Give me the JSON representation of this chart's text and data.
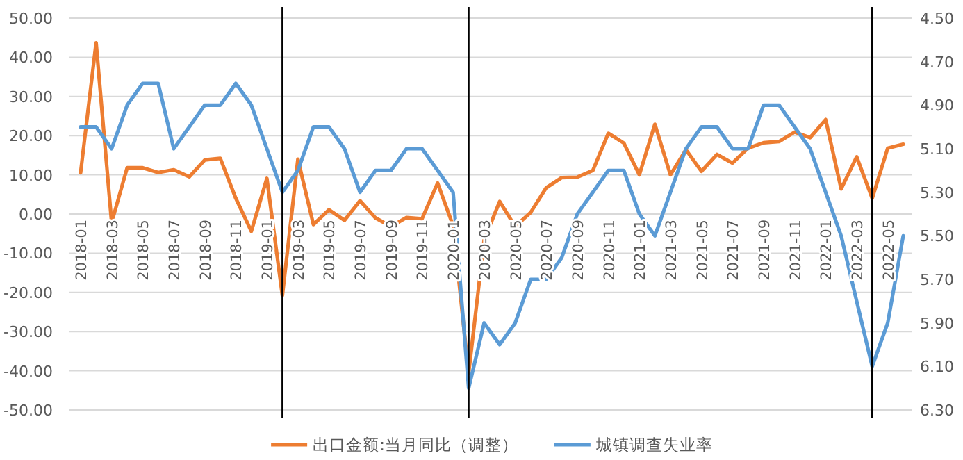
{
  "chart_data": {
    "type": "line",
    "legend": "bottom",
    "grid": "y",
    "x": [
      "2018-01",
      "2018-02",
      "2018-03",
      "2018-04",
      "2018-05",
      "2018-06",
      "2018-07",
      "2018-08",
      "2018-09",
      "2018-10",
      "2018-11",
      "2018-12",
      "2019-01",
      "2019-02",
      "2019-03",
      "2019-04",
      "2019-05",
      "2019-06",
      "2019-07",
      "2019-08",
      "2019-09",
      "2019-10",
      "2019-11",
      "2019-12",
      "2020-01",
      "2020-02",
      "2020-03",
      "2020-04",
      "2020-05",
      "2020-06",
      "2020-07",
      "2020-08",
      "2020-09",
      "2020-10",
      "2020-11",
      "2020-12",
      "2021-01",
      "2021-02",
      "2021-03",
      "2021-04",
      "2021-05",
      "2021-06",
      "2021-07",
      "2021-08",
      "2021-09",
      "2021-10",
      "2021-11",
      "2021-12",
      "2022-01",
      "2022-02",
      "2022-03",
      "2022-04",
      "2022-05",
      "2022-06"
    ],
    "xlim": [
      "2018-01",
      "2022-06"
    ],
    "xticks": [
      "2018-01",
      "2018-03",
      "2018-05",
      "2018-07",
      "2018-09",
      "2018-11",
      "2019-01",
      "2019-03",
      "2019-05",
      "2019-07",
      "2019-09",
      "2019-11",
      "2020-01",
      "2020-03",
      "2020-05",
      "2020-07",
      "2020-09",
      "2020-11",
      "2021-01",
      "2021-03",
      "2021-05",
      "2021-07",
      "2021-09",
      "2021-11",
      "2022-01",
      "2022-03",
      "2022-05"
    ],
    "ylim": [
      -50,
      50
    ],
    "yticks": [
      {
        "value": -50,
        "label": "-50.00"
      },
      {
        "value": -40,
        "label": "-40.00"
      },
      {
        "value": -30,
        "label": "-30.00"
      },
      {
        "value": -20,
        "label": "-20.00"
      },
      {
        "value": -10,
        "label": "-10.00"
      },
      {
        "value": 0,
        "label": "0.00"
      },
      {
        "value": 10,
        "label": "10.00"
      },
      {
        "value": 20,
        "label": "20.00"
      },
      {
        "value": 30,
        "label": "30.00"
      },
      {
        "value": 40,
        "label": "40.00"
      },
      {
        "value": 50,
        "label": "50.00"
      }
    ],
    "y2lim": [
      6.3,
      4.5
    ],
    "y2ticks": [
      {
        "value": 6.3,
        "label": "6.30"
      },
      {
        "value": 6.1,
        "label": "6.10"
      },
      {
        "value": 5.9,
        "label": "5.90"
      },
      {
        "value": 5.7,
        "label": "5.70"
      },
      {
        "value": 5.5,
        "label": "5.50"
      },
      {
        "value": 5.3,
        "label": "5.30"
      },
      {
        "value": 5.1,
        "label": "5.10"
      },
      {
        "value": 4.9,
        "label": "4.90"
      },
      {
        "value": 4.7,
        "label": "4.70"
      },
      {
        "value": 4.5,
        "label": "4.50"
      }
    ],
    "ref_lines": [
      {
        "axis": "x",
        "value": "2019-02",
        "color": "#000000"
      },
      {
        "axis": "x",
        "value": "2020-02",
        "color": "#000000"
      },
      {
        "axis": "x",
        "value": "2022-04",
        "color": "#000000"
      }
    ],
    "series": [
      {
        "name": "出口金额:当月同比（调整）",
        "color": "#ed7d31",
        "values": [
          10.5,
          43.7,
          -2.2,
          11.8,
          11.8,
          10.6,
          11.3,
          9.5,
          13.8,
          14.2,
          4.0,
          -4.4,
          9.1,
          -20.8,
          14,
          -2.7,
          1.1,
          -1.6,
          3.4,
          -1.0,
          -3.2,
          -0.9,
          -1.2,
          7.9,
          -3,
          -40.6,
          -6.6,
          3.2,
          -3.2,
          0.4,
          6.7,
          9.3,
          9.4,
          11.1,
          20.6,
          18.1,
          10,
          22.9,
          10,
          16.4,
          10.9,
          15.2,
          13,
          16.8,
          18.2,
          18.5,
          20.9,
          19.5,
          24.1,
          6.4,
          14.6,
          4.0,
          16.8,
          17.8
        ]
      },
      {
        "name": "城镇调查失业率",
        "color": "#5b9bd5",
        "axis": "y2",
        "values": [
          5.0,
          5.0,
          5.1,
          4.9,
          4.8,
          4.8,
          5.1,
          5.0,
          4.9,
          4.9,
          4.8,
          4.9,
          5.1,
          5.3,
          5.2,
          5.0,
          5.0,
          5.1,
          5.3,
          5.2,
          5.2,
          5.1,
          5.1,
          5.2,
          5.3,
          6.2,
          5.9,
          6.0,
          5.9,
          5.7,
          5.7,
          5.6,
          5.4,
          5.3,
          5.2,
          5.2,
          5.4,
          5.5,
          5.3,
          5.1,
          5.0,
          5.0,
          5.1,
          5.1,
          4.9,
          4.9,
          5.0,
          5.1,
          5.3,
          5.5,
          5.8,
          6.1,
          5.9,
          5.5
        ]
      }
    ]
  }
}
